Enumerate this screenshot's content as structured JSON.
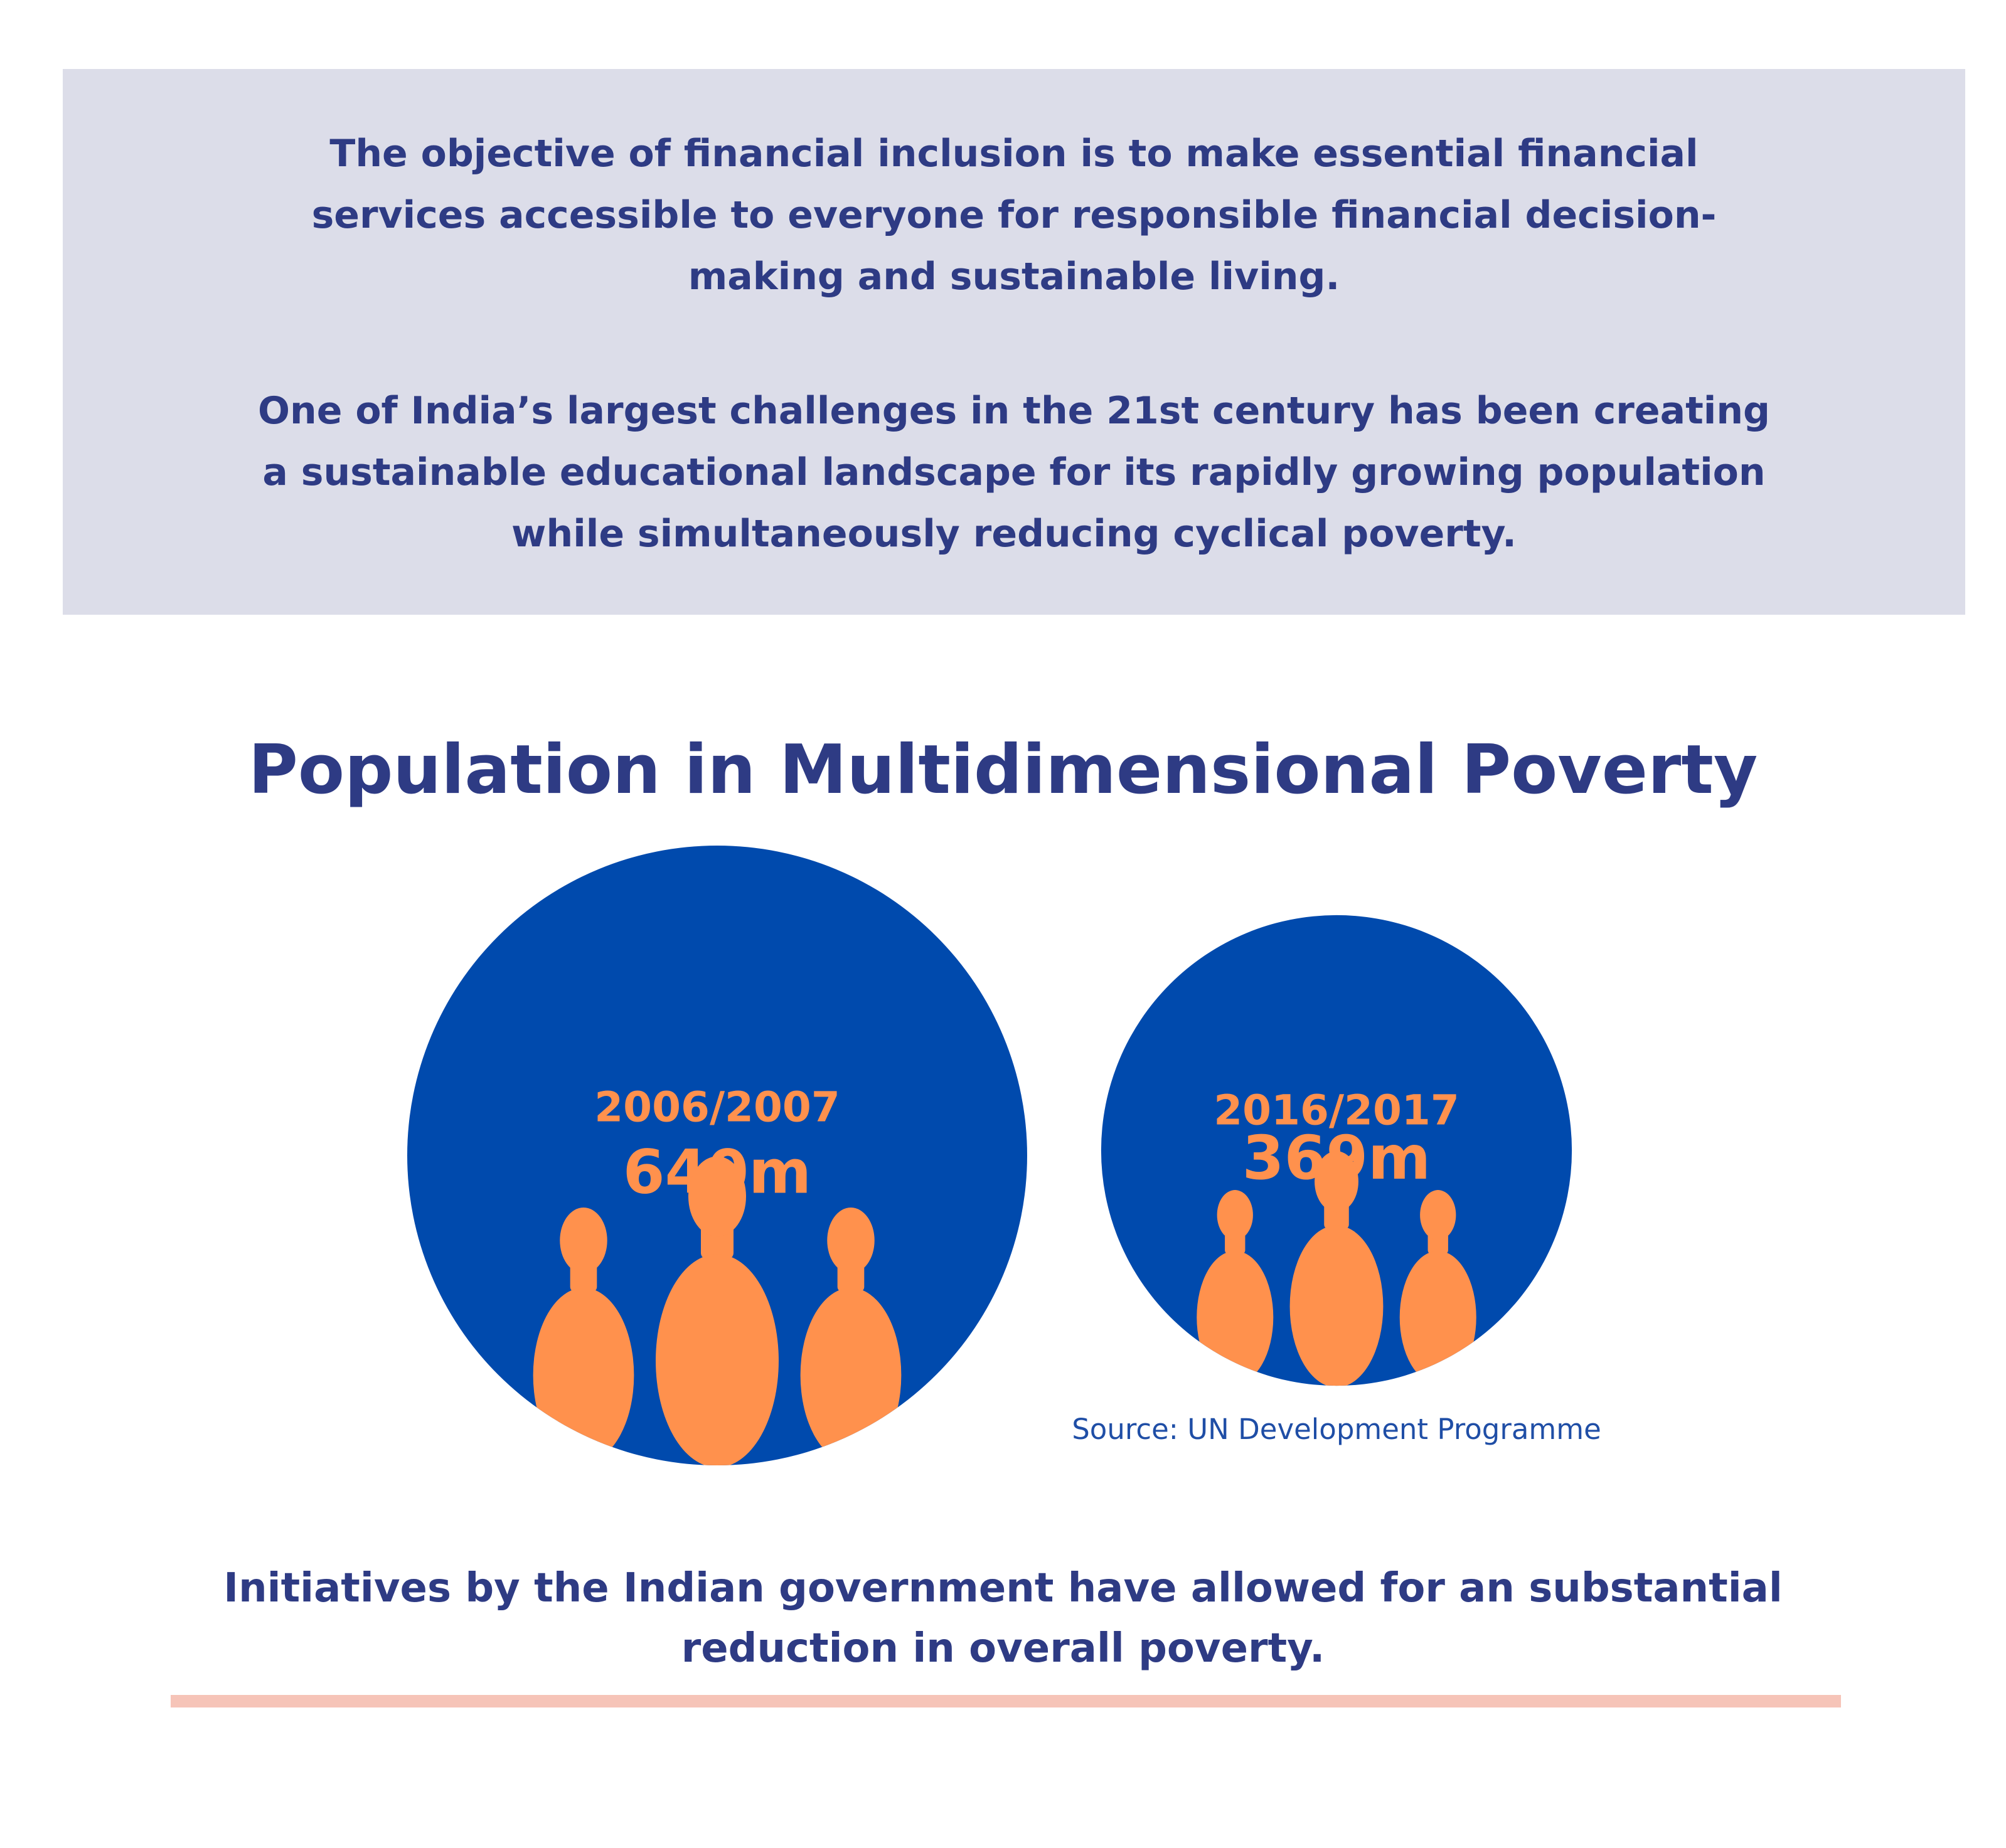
{
  "intro": {
    "paragraph1": "The objective of financial inclusion is to make essential financial services accessible to everyone for responsible financial decision-making and sustainable living.",
    "paragraph2": "One of India’s largest challenges in the 21st century has been creating a sustainable educational landscape for its rapidly growing population while simultaneously reducing cyclical poverty."
  },
  "chart_data": {
    "type": "bubble",
    "title": "Population in Multidimensional Poverty",
    "unit": "m",
    "points": [
      {
        "period": "2006/2007",
        "value": 640,
        "label": "640m"
      },
      {
        "period": "2016/2017",
        "value": 369,
        "label": "369m"
      }
    ],
    "source": "Source: UN Development Programme",
    "colors": {
      "bubble": "#004aad",
      "text": "#ff914d",
      "icon": "#ff914d"
    },
    "icon": "people-group-icon"
  },
  "conclusion": "Initiatives by the Indian government have allowed for an substantial reduction in overall poverty."
}
